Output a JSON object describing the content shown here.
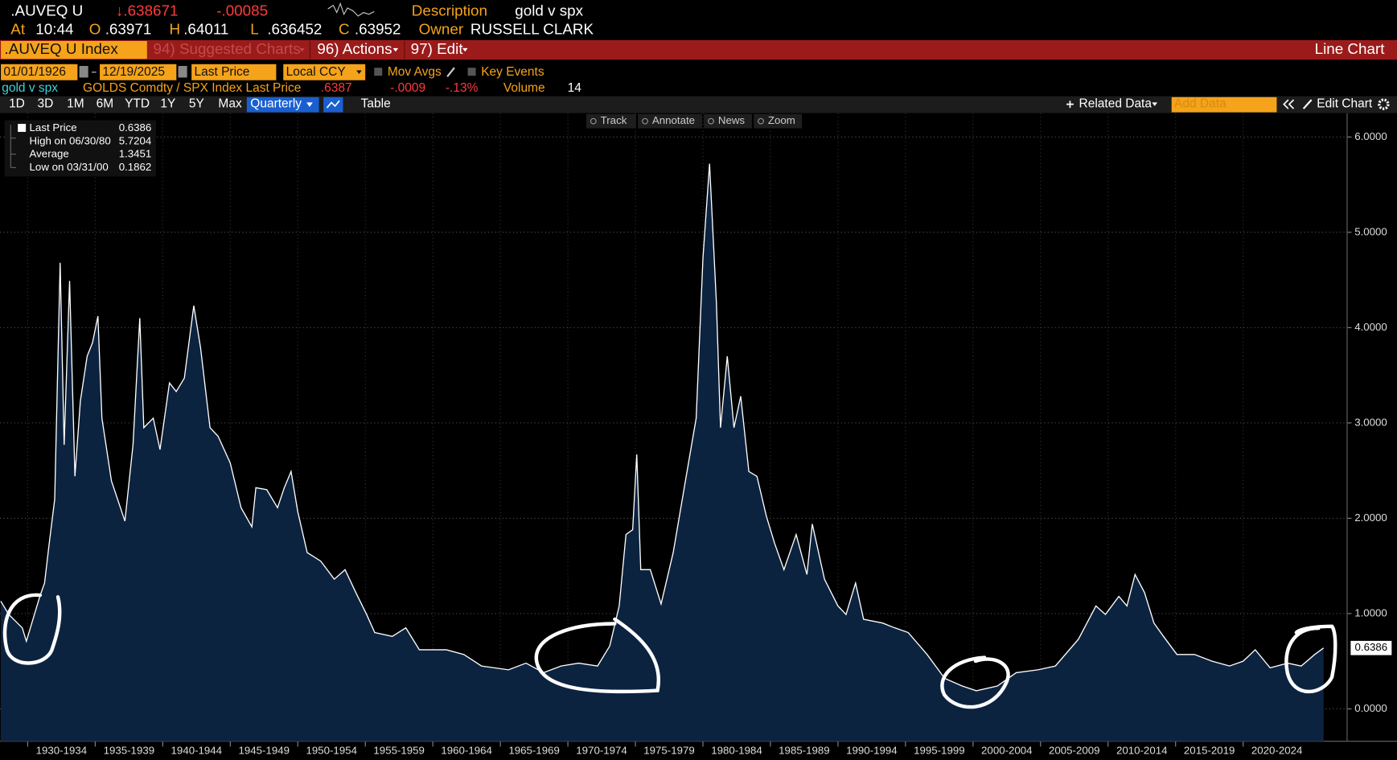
{
  "header": {
    "ticker": ".AUVEQ U",
    "last": "↓.638671",
    "change": "-.00085",
    "description_label": "Description",
    "description": "gold v spx",
    "at_label": "At",
    "time": "10:44",
    "open_label": "O",
    "open": ".63971",
    "high_label": "H",
    "high": ".64011",
    "low_label": "L",
    "low": ".636452",
    "close_label": "C",
    "close": ".63952",
    "owner_label": "Owner",
    "owner": "RUSSELL CLARK"
  },
  "menu": {
    "security": ".AUVEQ U Index",
    "suggested": "94) Suggested Charts",
    "actions": "96) Actions",
    "edit": "97) Edit",
    "chart_type": "Line Chart"
  },
  "settings": {
    "start_date": "01/01/1926",
    "end_date": "12/19/2025",
    "field": "Last Price",
    "currency": "Local CCY",
    "mov_avgs": "Mov Avgs",
    "key_events": "Key Events"
  },
  "legend": {
    "security": "GOLDS Comdty / SPX Index Last Price",
    "last": ".6387",
    "change": "-.0009",
    "change_pct": "-.13%",
    "volume_label": "Volume",
    "volume": "14"
  },
  "toolbar": {
    "periods": [
      "1D",
      "3D",
      "1M",
      "6M",
      "YTD",
      "1Y",
      "5Y",
      "Max"
    ],
    "frequency": "Quarterly",
    "table": "Table",
    "related": "Related Data",
    "add_data": "Add Data",
    "edit_chart": "Edit Chart"
  },
  "chart_tools": [
    "Track",
    "Annotate",
    "News",
    "Zoom"
  ],
  "stats": [
    {
      "label": "Last Price",
      "value": "0.6386"
    },
    {
      "label": "High on 06/30/80",
      "value": "5.7204"
    },
    {
      "label": "Average",
      "value": "1.3451"
    },
    {
      "label": "Low on 03/31/00",
      "value": "0.1862"
    }
  ],
  "chart_data": {
    "type": "area",
    "x": [
      1928.0,
      1928.6,
      1929.6,
      1929.9,
      1930.9,
      1931.25,
      1931.6,
      1932.0,
      1932.4,
      1932.7,
      1933.1,
      1933.5,
      1933.9,
      1934.4,
      1934.8,
      1935.2,
      1935.5,
      1936.2,
      1937.2,
      1937.8,
      1938.3,
      1938.6,
      1939.3,
      1939.8,
      1940.5,
      1941.0,
      1941.6,
      1942.3,
      1942.8,
      1943.5,
      1944.1,
      1945.0,
      1945.8,
      1946.6,
      1946.9,
      1947.7,
      1948.5,
      1949.0,
      1949.5,
      1950.0,
      1950.7,
      1951.7,
      1952.7,
      1953.5,
      1954.3,
      1955.1,
      1955.7,
      1957.0,
      1958.0,
      1959.0,
      1961.0,
      1962.3,
      1963.6,
      1965.6,
      1966.9,
      1968.2,
      1969.5,
      1970.8,
      1972.2,
      1973.1,
      1973.8,
      1974.3,
      1974.8,
      1975.1,
      1975.4,
      1976.1,
      1976.9,
      1977.8,
      1978.7,
      1979.5,
      1980.0,
      1980.49,
      1981.0,
      1981.3,
      1981.8,
      1982.3,
      1982.8,
      1983.4,
      1984.0,
      1984.7,
      1985.3,
      1986.0,
      1986.9,
      1987.7,
      1988.1,
      1989.0,
      1990.0,
      1990.6,
      1991.3,
      1991.9,
      1993.3,
      1994.2,
      1995.2,
      1996.6,
      1997.9,
      1999.2,
      2000.25,
      2001.8,
      2003.2,
      2004.8,
      2006.1,
      2007.8,
      2009.1,
      2009.8,
      2010.8,
      2011.4,
      2012.0,
      2012.7,
      2013.4,
      2014.1,
      2015.1,
      2016.4,
      2017.7,
      2019.0,
      2020.0,
      2020.9,
      2022.0,
      2023.3,
      2024.3,
      2025.3,
      2025.96
    ],
    "series": [
      {
        "name": "gold v spx",
        "color": "#ffffff",
        "fill": "#0c2340",
        "values": [
          1.13,
          0.99,
          0.85,
          0.71,
          1.18,
          1.32,
          1.74,
          2.2,
          4.68,
          2.77,
          4.49,
          2.44,
          3.23,
          3.7,
          3.84,
          4.12,
          3.05,
          2.39,
          1.97,
          2.77,
          4.1,
          2.95,
          3.05,
          2.72,
          3.42,
          3.33,
          3.47,
          4.23,
          3.79,
          2.95,
          2.86,
          2.58,
          2.11,
          1.91,
          2.32,
          2.3,
          2.11,
          2.32,
          2.49,
          2.07,
          1.64,
          1.55,
          1.36,
          1.46,
          1.22,
          0.99,
          0.8,
          0.76,
          0.85,
          0.62,
          0.62,
          0.57,
          0.45,
          0.41,
          0.48,
          0.38,
          0.45,
          0.48,
          0.45,
          0.66,
          1.08,
          1.83,
          1.88,
          2.67,
          1.46,
          1.46,
          1.1,
          1.64,
          2.39,
          3.05,
          4.73,
          5.72,
          4.26,
          2.95,
          3.7,
          2.95,
          3.28,
          2.49,
          2.44,
          2.02,
          1.74,
          1.46,
          1.83,
          1.41,
          1.94,
          1.36,
          1.08,
          0.99,
          1.32,
          0.94,
          0.9,
          0.85,
          0.8,
          0.57,
          0.32,
          0.24,
          0.19,
          0.24,
          0.38,
          0.41,
          0.45,
          0.73,
          1.08,
          0.99,
          1.18,
          1.08,
          1.41,
          1.22,
          0.9,
          0.76,
          0.57,
          0.57,
          0.5,
          0.45,
          0.5,
          0.62,
          0.43,
          0.48,
          0.45,
          0.57,
          0.6386
        ]
      }
    ],
    "xlim": [
      1927.95,
      2027.7
    ],
    "xticks": [
      {
        "value": 1930,
        "label": "1930-1934"
      },
      {
        "value": 1935,
        "label": "1935-1939"
      },
      {
        "value": 1940,
        "label": "1940-1944"
      },
      {
        "value": 1945,
        "label": "1945-1949"
      },
      {
        "value": 1950,
        "label": "1950-1954"
      },
      {
        "value": 1955,
        "label": "1955-1959"
      },
      {
        "value": 1960,
        "label": "1960-1964"
      },
      {
        "value": 1965,
        "label": "1965-1969"
      },
      {
        "value": 1970,
        "label": "1970-1974"
      },
      {
        "value": 1975,
        "label": "1975-1979"
      },
      {
        "value": 1980,
        "label": "1980-1984"
      },
      {
        "value": 1985,
        "label": "1985-1989"
      },
      {
        "value": 1990,
        "label": "1990-1994"
      },
      {
        "value": 1995,
        "label": "1995-1999"
      },
      {
        "value": 2000,
        "label": "2000-2004"
      },
      {
        "value": 2005,
        "label": "2005-2009"
      },
      {
        "value": 2010,
        "label": "2010-2014"
      },
      {
        "value": 2015,
        "label": "2015-2019"
      },
      {
        "value": 2020,
        "label": "2020-2024"
      }
    ],
    "ylim": [
      -0.34,
      6.25
    ],
    "yticks": [
      {
        "value": 0,
        "label": "0.0000"
      },
      {
        "value": 1,
        "label": "1.0000"
      },
      {
        "value": 2,
        "label": "2.0000"
      },
      {
        "value": 3,
        "label": "3.0000"
      },
      {
        "value": 4,
        "label": "4.0000"
      },
      {
        "value": 5,
        "label": "5.0000"
      },
      {
        "value": 6,
        "label": "6.0000"
      }
    ],
    "grid": true
  }
}
